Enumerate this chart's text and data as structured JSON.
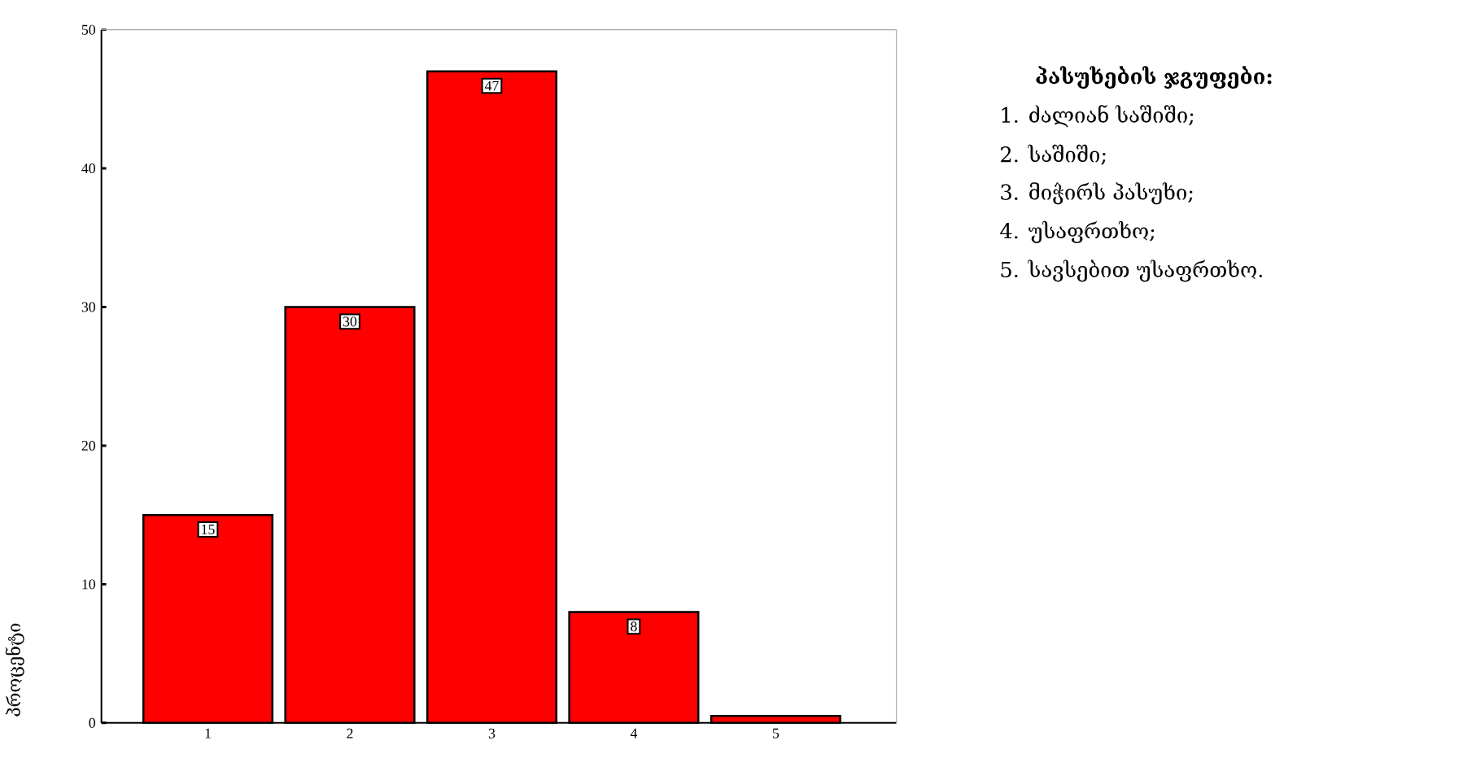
{
  "chart_data": {
    "type": "bar",
    "ylabel": "პროცენტი",
    "categories": [
      "1",
      "2",
      "3",
      "4",
      "5"
    ],
    "values": [
      15,
      30,
      47,
      8,
      0.5
    ],
    "value_labels": [
      "15",
      "30",
      "47",
      "8",
      null
    ],
    "color": "#ff0000",
    "ylim": [
      0,
      50
    ],
    "yticks": [
      0,
      10,
      20,
      30,
      40,
      50
    ],
    "annotations": [
      "**პასუხების ჯგუფები:**",
      "1. ძალიან საშიში;",
      "2. საშიში;",
      "3. მიჭირს პასუხი;",
      "4. უსაფრთხო;",
      "5. სავსებით უსაფრთხო."
    ]
  }
}
